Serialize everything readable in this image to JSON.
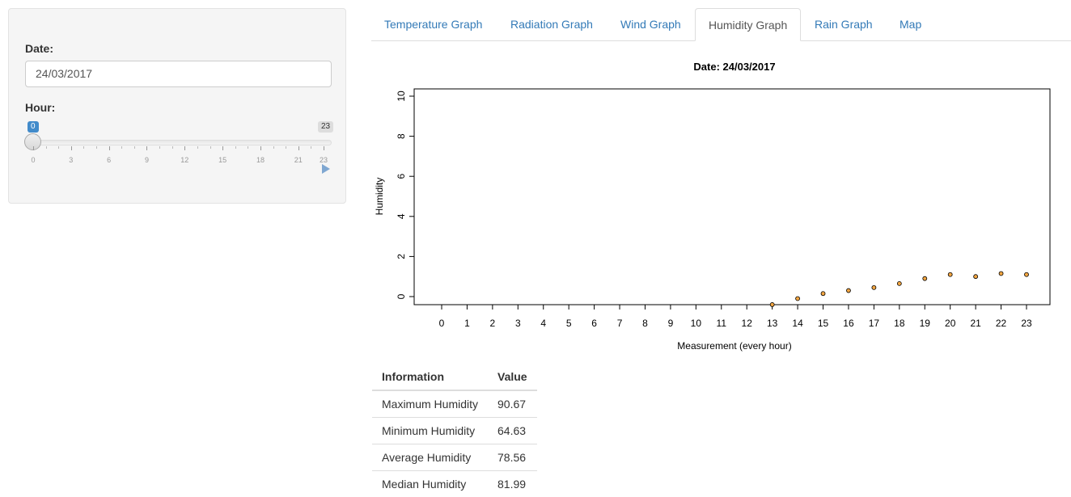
{
  "sidebar": {
    "date_label": "Date:",
    "date_value": "24/03/2017",
    "hour_label": "Hour:",
    "slider": {
      "min": 0,
      "max": 23,
      "value": 0,
      "min_label": "0",
      "max_label": "23",
      "tick_labels": [
        "0",
        "3",
        "6",
        "9",
        "12",
        "15",
        "18",
        "21",
        "23"
      ]
    }
  },
  "tabs": [
    {
      "label": "Temperature Graph"
    },
    {
      "label": "Radiation Graph"
    },
    {
      "label": "Wind Graph"
    },
    {
      "label": "Humidity Graph"
    },
    {
      "label": "Rain Graph"
    },
    {
      "label": "Map"
    }
  ],
  "active_tab": "Humidity Graph",
  "chart_data": {
    "type": "scatter",
    "title": "Date:  24/03/2017",
    "xlabel": "Measurement (every hour)",
    "ylabel": "Humidity",
    "xlim": [
      0,
      23
    ],
    "ylim": [
      0,
      10
    ],
    "x_tick_labels": [
      "0",
      "1",
      "2",
      "3",
      "4",
      "5",
      "6",
      "7",
      "8",
      "9",
      "10",
      "11",
      "12",
      "13",
      "14",
      "15",
      "16",
      "17",
      "18",
      "19",
      "20",
      "21",
      "22",
      "23"
    ],
    "y_tick_labels": [
      "0",
      "2",
      "4",
      "6",
      "8",
      "10"
    ],
    "x": [
      13,
      14,
      15,
      16,
      17,
      18,
      19,
      20,
      21,
      22,
      23
    ],
    "y": [
      -0.4,
      -0.1,
      0.15,
      0.3,
      0.45,
      0.65,
      0.9,
      1.1,
      1.0,
      1.15,
      1.1
    ],
    "grid": false,
    "point_color": "#f4a742"
  },
  "table": {
    "headers": [
      "Information",
      "Value"
    ],
    "rows": [
      {
        "label": "Maximum Humidity",
        "value": "90.67"
      },
      {
        "label": "Minimum Humidity",
        "value": "64.63"
      },
      {
        "label": "Average Humidity",
        "value": "78.56"
      },
      {
        "label": "Median Humidity",
        "value": "81.99"
      }
    ]
  }
}
